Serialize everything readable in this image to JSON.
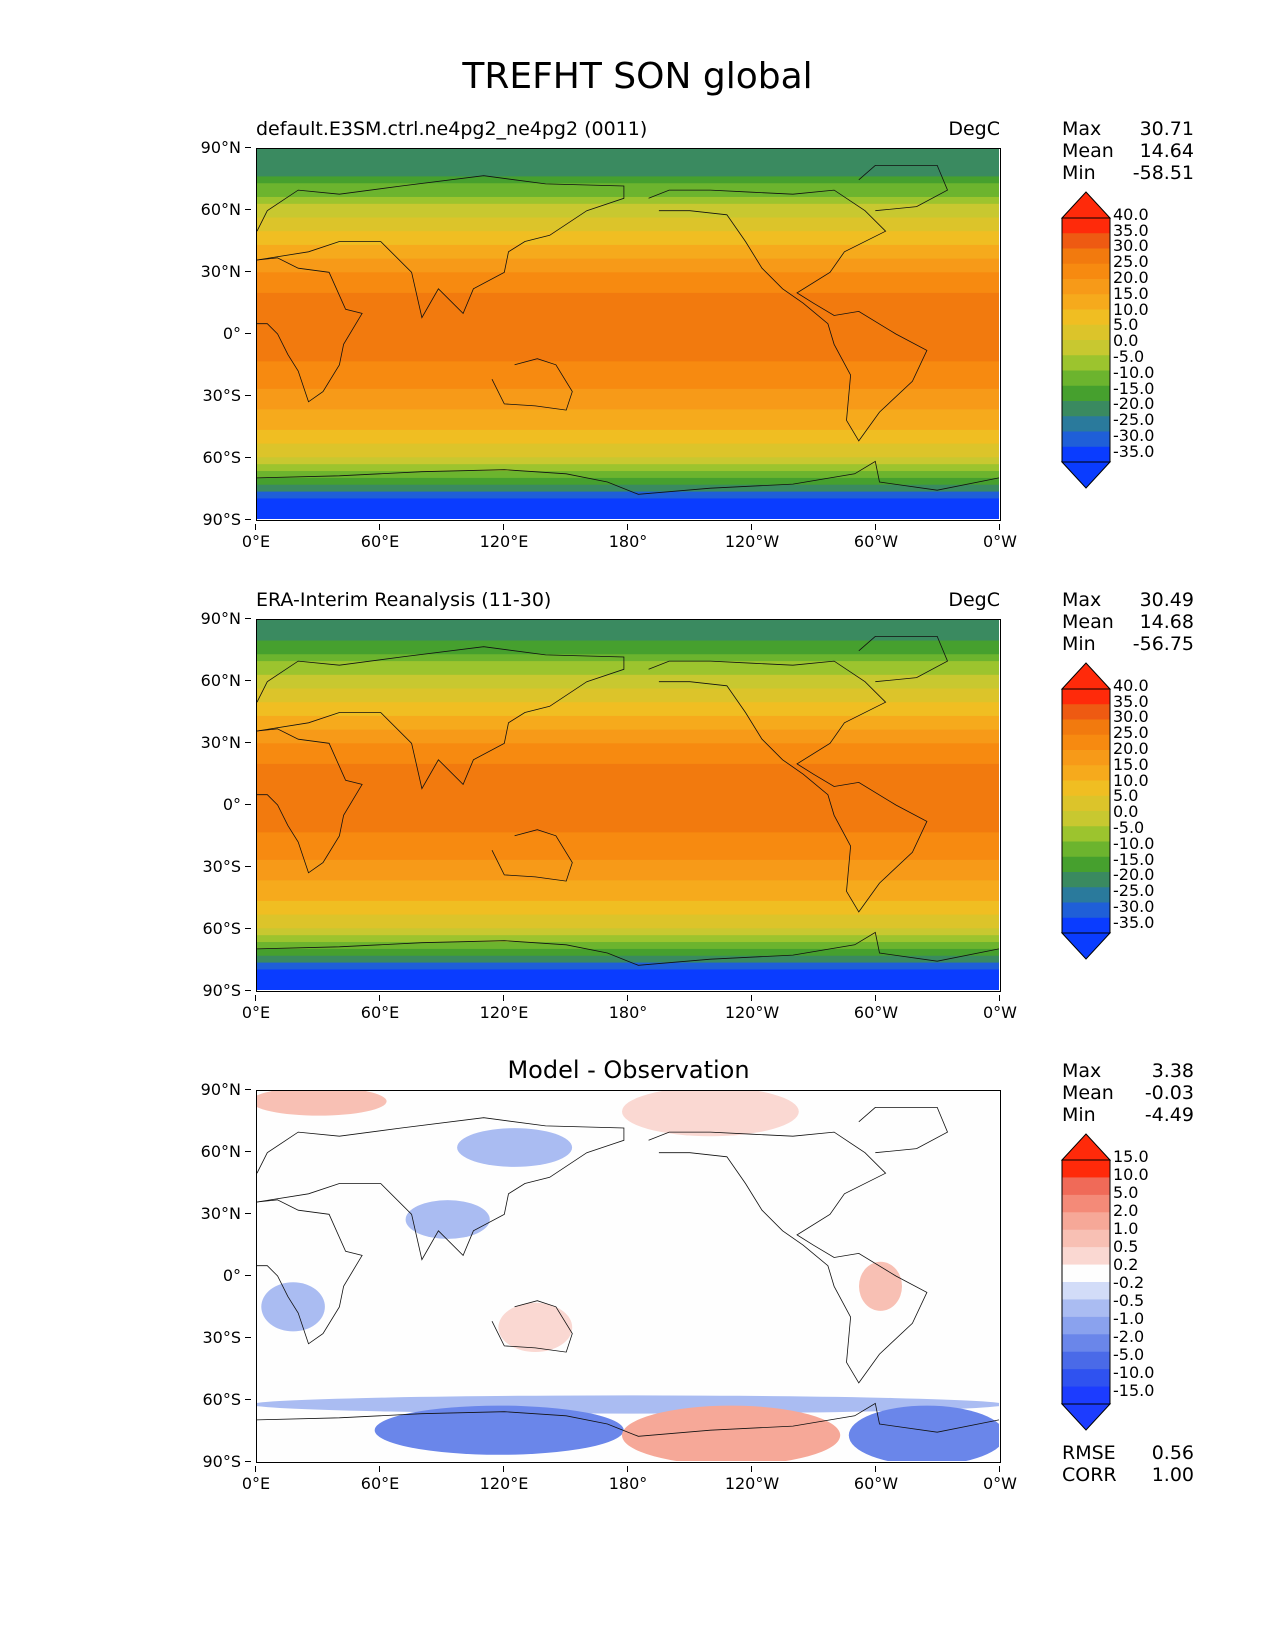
{
  "figure": {
    "title": "TREFHT SON global"
  },
  "axes": {
    "yticks": [
      "90°N",
      "60°N",
      "30°N",
      "0°",
      "30°S",
      "60°S",
      "90°S"
    ],
    "xticks": [
      "0°E",
      "60°E",
      "120°E",
      "180°",
      "120°W",
      "60°W",
      "0°W"
    ]
  },
  "panels": [
    {
      "title_left": "default.E3SM.ctrl.ne4pg2_ne4pg2 (0011)",
      "title_right": "DegC",
      "stats": [
        {
          "label": "Max",
          "value": "30.71"
        },
        {
          "label": "Mean",
          "value": "14.64"
        },
        {
          "label": "Min",
          "value": "-58.51"
        }
      ],
      "colorbar_labels": [
        "40.0",
        "35.0",
        "30.0",
        "25.0",
        "20.0",
        "15.0",
        "10.0",
        "5.0",
        "0.0",
        "-5.0",
        "-10.0",
        "-15.0",
        "-20.0",
        "-25.0",
        "-30.0",
        "-35.0"
      ]
    },
    {
      "title_left": "ERA-Interim Reanalysis (11-30)",
      "title_right": "DegC",
      "stats": [
        {
          "label": "Max",
          "value": "30.49"
        },
        {
          "label": "Mean",
          "value": "14.68"
        },
        {
          "label": "Min",
          "value": "-56.75"
        }
      ],
      "colorbar_labels": [
        "40.0",
        "35.0",
        "30.0",
        "25.0",
        "20.0",
        "15.0",
        "10.0",
        "5.0",
        "0.0",
        "-5.0",
        "-10.0",
        "-15.0",
        "-20.0",
        "-25.0",
        "-30.0",
        "-35.0"
      ]
    },
    {
      "title_center": "Model - Observation",
      "stats": [
        {
          "label": "Max",
          "value": "3.38"
        },
        {
          "label": "Mean",
          "value": "-0.03"
        },
        {
          "label": "Min",
          "value": "-4.49"
        }
      ],
      "colorbar_labels": [
        "15.0",
        "10.0",
        "5.0",
        "2.0",
        "1.0",
        "0.5",
        "0.2",
        "-0.2",
        "-0.5",
        "-1.0",
        "-2.0",
        "-5.0",
        "-10.0",
        "-15.0"
      ],
      "extra_stats": [
        {
          "label": "RMSE",
          "value": "0.56"
        },
        {
          "label": "CORR",
          "value": "1.00"
        }
      ]
    }
  ],
  "chart_data": [
    {
      "type": "heatmap",
      "title": "default.E3SM.ctrl.ne4pg2_ne4pg2 (0011)",
      "units": "DegC",
      "x": [
        "0°E",
        "60°E",
        "120°E",
        "180°",
        "120°W",
        "60°W",
        "0°W"
      ],
      "y": [
        "90°N",
        "60°N",
        "30°N",
        "0°",
        "30°S",
        "60°S",
        "90°S"
      ],
      "latitudes": [
        90,
        80,
        70,
        60,
        50,
        40,
        30,
        20,
        10,
        0,
        -10,
        -20,
        -30,
        -40,
        -50,
        -60,
        -70,
        -80,
        -90
      ],
      "zonal_temperature": [
        -25,
        -22,
        -12,
        -3,
        6,
        13,
        21,
        25,
        27,
        27,
        26,
        23,
        19,
        14,
        8,
        0,
        -12,
        -35,
        -45
      ],
      "stats": {
        "max": 30.71,
        "mean": 14.64,
        "min": -58.51
      },
      "levels": [
        -35,
        -30,
        -25,
        -20,
        -15,
        -10,
        -5,
        0,
        5,
        10,
        15,
        20,
        25,
        30,
        35,
        40
      ],
      "level_colors": [
        "#0a3cff",
        "#1f5fd8",
        "#2a7a9c",
        "#3a8a60",
        "#46a02e",
        "#6cb42e",
        "#9cc42e",
        "#c8c830",
        "#dcc42a",
        "#f0be22",
        "#f6aa1c",
        "#f79a18",
        "#f78a10",
        "#f27a0e",
        "#ee5a12",
        "#ff2a0a"
      ],
      "xlim": [
        0,
        360
      ],
      "ylim": [
        -90,
        90
      ]
    },
    {
      "type": "heatmap",
      "title": "ERA-Interim Reanalysis (11-30)",
      "units": "DegC",
      "x": [
        "0°E",
        "60°E",
        "120°E",
        "180°",
        "120°W",
        "60°W",
        "0°W"
      ],
      "y": [
        "90°N",
        "60°N",
        "30°N",
        "0°",
        "30°S",
        "60°S",
        "90°S"
      ],
      "latitudes": [
        90,
        80,
        70,
        60,
        50,
        40,
        30,
        20,
        10,
        0,
        -10,
        -20,
        -30,
        -40,
        -50,
        -60,
        -70,
        -80,
        -90
      ],
      "zonal_temperature": [
        -24,
        -20,
        -10,
        -2,
        6,
        13,
        21,
        25,
        27,
        27,
        26,
        23,
        19,
        14,
        8,
        0,
        -12,
        -35,
        -45
      ],
      "stats": {
        "max": 30.49,
        "mean": 14.68,
        "min": -56.75
      },
      "levels": [
        -35,
        -30,
        -25,
        -20,
        -15,
        -10,
        -5,
        0,
        5,
        10,
        15,
        20,
        25,
        30,
        35,
        40
      ],
      "xlim": [
        0,
        360
      ],
      "ylim": [
        -90,
        90
      ]
    },
    {
      "type": "heatmap",
      "title": "Model - Observation",
      "x": [
        "0°E",
        "60°E",
        "120°E",
        "180°",
        "120°W",
        "60°W",
        "0°W"
      ],
      "y": [
        "90°N",
        "60°N",
        "30°N",
        "0°",
        "30°S",
        "60°S",
        "90°S"
      ],
      "stats": {
        "max": 3.38,
        "mean": -0.03,
        "min": -4.49,
        "rmse": 0.56,
        "corr": 1.0
      },
      "levels": [
        -15,
        -10,
        -5,
        -2,
        -1,
        -0.5,
        -0.2,
        0.2,
        0.5,
        1,
        2,
        5,
        10,
        15
      ],
      "level_colors": [
        "#1c3cff",
        "#2f52f0",
        "#4a6ae8",
        "#6a86ea",
        "#8aa2ee",
        "#aabcf2",
        "#d2dcf8",
        "#fefefe",
        "#fad8d2",
        "#f8c0b4",
        "#f6a898",
        "#f48a78",
        "#f06a58",
        "#ff2a0a"
      ],
      "anomaly_regions": [
        {
          "lon": [
            0,
            60
          ],
          "lat": [
            80,
            90
          ],
          "value": 1.0
        },
        {
          "lon": [
            180,
            260
          ],
          "lat": [
            70,
            90
          ],
          "value": 0.5
        },
        {
          "lon": [
            100,
            150
          ],
          "lat": [
            55,
            70
          ],
          "value": -0.5
        },
        {
          "lon": [
            75,
            110
          ],
          "lat": [
            20,
            35
          ],
          "value": -0.5
        },
        {
          "lon": [
            5,
            30
          ],
          "lat": [
            -25,
            -5
          ],
          "value": -0.5
        },
        {
          "lon": [
            120,
            150
          ],
          "lat": [
            -35,
            -15
          ],
          "value": 0.5
        },
        {
          "lon": [
            295,
            310
          ],
          "lat": [
            -15,
            5
          ],
          "value": 1.0
        },
        {
          "lon": [
            0,
            360
          ],
          "lat": [
            -65,
            -60
          ],
          "value": -0.5
        },
        {
          "lon": [
            60,
            175
          ],
          "lat": [
            -85,
            -65
          ],
          "value": -2.0
        },
        {
          "lon": [
            180,
            280
          ],
          "lat": [
            -90,
            -65
          ],
          "value": 2.0
        },
        {
          "lon": [
            290,
            360
          ],
          "lat": [
            -90,
            -65
          ],
          "value": -2.0
        }
      ],
      "xlim": [
        0,
        360
      ],
      "ylim": [
        -90,
        90
      ]
    }
  ]
}
